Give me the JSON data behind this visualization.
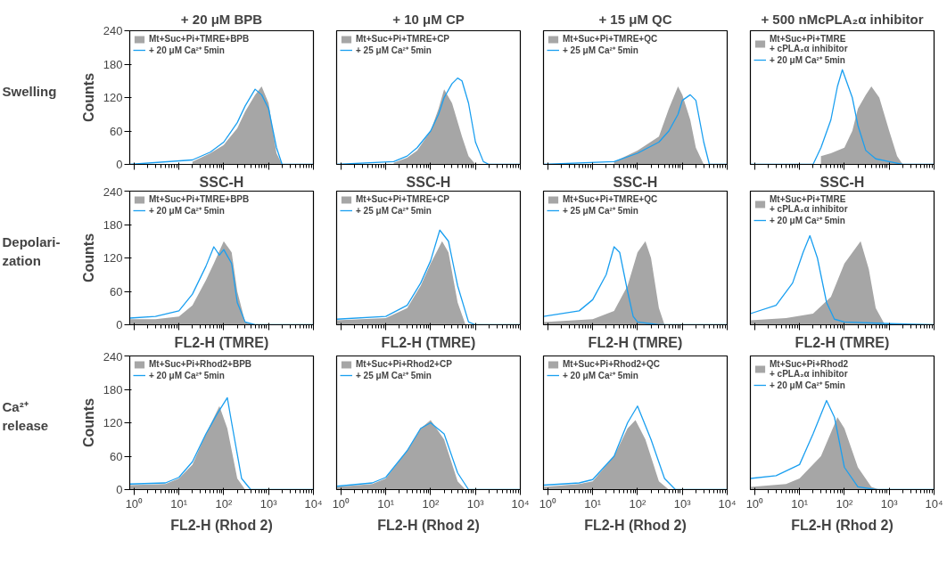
{
  "chart_data": [
    {
      "type": "area",
      "title": "+ 20 μM BPB",
      "xlabel": "SSC-H",
      "ylabel": "Counts",
      "annotations": [
        "Swelling"
      ],
      "log": "x",
      "xlim": [
        0.8,
        10000
      ],
      "ylim": [
        0,
        240
      ],
      "xticks": [
        {
          "value": 1,
          "label": null
        },
        {
          "value": 10,
          "label": null
        },
        {
          "value": 100,
          "label": null
        },
        {
          "value": 1000,
          "label": null
        },
        {
          "value": 10000,
          "label": null
        }
      ],
      "yticks": [
        0,
        60,
        120,
        180,
        240
      ],
      "tick_labels": "y",
      "legend": "top left",
      "marker": "none",
      "series": [
        {
          "name": "Mt+Suc+Pi+TMRE+BPB",
          "color": "#a6a6a6",
          "x": [
            20,
            50,
            100,
            200,
            300,
            500,
            700,
            1000,
            1500,
            2000
          ],
          "values": [
            5,
            20,
            35,
            65,
            95,
            125,
            140,
            110,
            20,
            0
          ]
        },
        {
          "name": "+ 20 μM Ca²⁺ 5min",
          "type": "line",
          "color": "#1a9ff0",
          "x": [
            0.8,
            20,
            50,
            100,
            200,
            300,
            500,
            700,
            1000,
            1500,
            2000,
            10000
          ],
          "values": [
            0,
            8,
            22,
            40,
            75,
            105,
            135,
            125,
            100,
            30,
            0,
            0
          ]
        }
      ]
    },
    {
      "type": "area",
      "title": "+ 10 μM CP",
      "xlabel": "SSC-H",
      "log": "x",
      "xlim": [
        0.8,
        10000
      ],
      "ylim": [
        0,
        240
      ],
      "xticks": [
        {
          "value": 1,
          "label": null
        },
        {
          "value": 10,
          "label": null
        },
        {
          "value": 100,
          "label": null
        },
        {
          "value": 1000,
          "label": null
        },
        {
          "value": 10000,
          "label": null
        }
      ],
      "yticks": [
        0,
        60,
        120,
        180,
        240
      ],
      "tick_labels": false,
      "legend": "top left",
      "marker": "none",
      "series": [
        {
          "name": "Mt+Suc+Pi+TMRE+CP",
          "color": "#a6a6a6",
          "x": [
            15,
            30,
            50,
            100,
            150,
            200,
            300,
            500,
            700,
            1000
          ],
          "values": [
            3,
            12,
            25,
            60,
            100,
            135,
            110,
            50,
            15,
            0
          ]
        },
        {
          "name": "+ 25 μM Ca²⁺ 5min",
          "type": "line",
          "color": "#1a9ff0",
          "x": [
            0.8,
            15,
            30,
            50,
            100,
            150,
            200,
            300,
            400,
            500,
            700,
            1000,
            1500,
            2000,
            10000
          ],
          "values": [
            0,
            5,
            15,
            30,
            60,
            90,
            120,
            145,
            155,
            150,
            110,
            40,
            5,
            0,
            0
          ]
        }
      ]
    },
    {
      "type": "area",
      "title": "+ 15 μM QC",
      "xlabel": "SSC-H",
      "log": "x",
      "xlim": [
        0.8,
        10000
      ],
      "ylim": [
        0,
        240
      ],
      "xticks": [
        {
          "value": 1,
          "label": null
        },
        {
          "value": 10,
          "label": null
        },
        {
          "value": 100,
          "label": null
        },
        {
          "value": 1000,
          "label": null
        },
        {
          "value": 10000,
          "label": null
        }
      ],
      "yticks": [
        0,
        60,
        120,
        180,
        240
      ],
      "tick_labels": false,
      "legend": "top left",
      "marker": "none",
      "series": [
        {
          "name": "Mt+Suc+Pi+TMRE+QC",
          "color": "#a6a6a6",
          "x": [
            30,
            100,
            300,
            500,
            800,
            1000,
            1500,
            2000,
            3000
          ],
          "values": [
            5,
            25,
            50,
            100,
            140,
            125,
            80,
            30,
            0
          ]
        },
        {
          "name": "+ 25 μM Ca²⁺ 5min",
          "type": "line",
          "color": "#1a9ff0",
          "x": [
            0.8,
            30,
            100,
            300,
            500,
            800,
            1000,
            1500,
            2000,
            3000,
            4000,
            10000
          ],
          "values": [
            0,
            5,
            20,
            40,
            60,
            90,
            115,
            125,
            115,
            40,
            0,
            0
          ]
        }
      ]
    },
    {
      "type": "area",
      "title": "+ 500 nMcPLA₂α inhibitor",
      "xlabel": "SSC-H",
      "log": "x",
      "xlim": [
        0.8,
        10000
      ],
      "ylim": [
        0,
        240
      ],
      "xticks": [
        {
          "value": 1,
          "label": null
        },
        {
          "value": 10,
          "label": null
        },
        {
          "value": 100,
          "label": null
        },
        {
          "value": 1000,
          "label": null
        },
        {
          "value": 10000,
          "label": null
        }
      ],
      "yticks": [
        0,
        60,
        120,
        180,
        240
      ],
      "tick_labels": false,
      "legend": "top left",
      "marker": "none",
      "series": [
        {
          "name": "Mt+Suc+Pi+TMRE\n+ cPLA₂α inhibitor",
          "color": "#a6a6a6",
          "x": [
            30,
            50,
            100,
            150,
            200,
            300,
            400,
            600,
            1000,
            1500,
            2000
          ],
          "values": [
            15,
            20,
            30,
            60,
            100,
            125,
            140,
            120,
            60,
            15,
            0
          ]
        },
        {
          "name": "+ 20 μM Ca²⁺ 5min",
          "type": "line",
          "color": "#1a9ff0",
          "x": [
            0.8,
            20,
            30,
            50,
            70,
            90,
            150,
            200,
            300,
            500,
            1000,
            2000,
            10000
          ],
          "values": [
            0,
            0,
            30,
            80,
            140,
            170,
            120,
            70,
            25,
            10,
            5,
            0,
            0
          ]
        }
      ]
    },
    {
      "type": "area",
      "xlabel": "FL2-H (TMRE)",
      "ylabel": "Counts",
      "annotations": [
        "Depolari-\nzation"
      ],
      "log": "x",
      "xlim": [
        0.8,
        10000
      ],
      "ylim": [
        0,
        240
      ],
      "xticks": [
        {
          "value": 1,
          "label": null
        },
        {
          "value": 10,
          "label": null
        },
        {
          "value": 100,
          "label": null
        },
        {
          "value": 1000,
          "label": null
        },
        {
          "value": 10000,
          "label": null
        }
      ],
      "yticks": [
        0,
        60,
        120,
        180,
        240
      ],
      "tick_labels": "y",
      "legend": "top left",
      "marker": "none",
      "series": [
        {
          "name": "Mt+Suc+Pi+TMRE+BPB",
          "color": "#a6a6a6",
          "x": [
            0.8,
            3,
            10,
            20,
            40,
            60,
            100,
            150,
            200,
            300,
            500
          ],
          "values": [
            10,
            10,
            15,
            35,
            80,
            110,
            150,
            130,
            60,
            5,
            0
          ]
        },
        {
          "name": "+ 20 μM Ca²⁺ 5min",
          "type": "line",
          "color": "#1a9ff0",
          "x": [
            0.8,
            3,
            10,
            20,
            40,
            60,
            80,
            100,
            150,
            200,
            300,
            500,
            10000
          ],
          "values": [
            12,
            15,
            25,
            55,
            105,
            140,
            125,
            135,
            110,
            40,
            5,
            0,
            0
          ]
        }
      ]
    },
    {
      "type": "area",
      "xlabel": "FL2-H (TMRE)",
      "log": "x",
      "xlim": [
        0.8,
        10000
      ],
      "ylim": [
        0,
        240
      ],
      "xticks": [
        {
          "value": 1,
          "label": null
        },
        {
          "value": 10,
          "label": null
        },
        {
          "value": 100,
          "label": null
        },
        {
          "value": 1000,
          "label": null
        },
        {
          "value": 10000,
          "label": null
        }
      ],
      "yticks": [
        0,
        60,
        120,
        180,
        240
      ],
      "tick_labels": false,
      "legend": "top left",
      "marker": "none",
      "series": [
        {
          "name": "Mt+Suc+Pi+TMRE+CP",
          "color": "#a6a6a6",
          "x": [
            0.8,
            10,
            30,
            60,
            100,
            180,
            250,
            400,
            600
          ],
          "values": [
            8,
            12,
            30,
            70,
            110,
            150,
            130,
            40,
            0
          ]
        },
        {
          "name": "+ 25 μM Ca²⁺ 5min",
          "type": "line",
          "color": "#1a9ff0",
          "x": [
            0.8,
            10,
            30,
            60,
            100,
            160,
            250,
            400,
            700,
            1000,
            10000
          ],
          "values": [
            10,
            15,
            35,
            75,
            115,
            170,
            150,
            70,
            5,
            0,
            0
          ]
        }
      ]
    },
    {
      "type": "area",
      "xlabel": "FL2-H (TMRE)",
      "log": "x",
      "xlim": [
        0.8,
        10000
      ],
      "ylim": [
        0,
        240
      ],
      "xticks": [
        {
          "value": 1,
          "label": null
        },
        {
          "value": 10,
          "label": null
        },
        {
          "value": 100,
          "label": null
        },
        {
          "value": 1000,
          "label": null
        },
        {
          "value": 10000,
          "label": null
        }
      ],
      "yticks": [
        0,
        60,
        120,
        180,
        240
      ],
      "tick_labels": false,
      "legend": "top left",
      "marker": "none",
      "series": [
        {
          "name": "Mt+Suc+Pi+TMRE+QC",
          "color": "#a6a6a6",
          "x": [
            0.8,
            10,
            30,
            60,
            100,
            150,
            200,
            300,
            400
          ],
          "values": [
            5,
            10,
            25,
            70,
            130,
            150,
            120,
            30,
            0
          ]
        },
        {
          "name": "+ 25 μM Ca²⁺ 5min",
          "type": "line",
          "color": "#1a9ff0",
          "x": [
            0.8,
            5,
            10,
            20,
            30,
            40,
            60,
            80,
            100,
            300,
            10000
          ],
          "values": [
            15,
            25,
            45,
            90,
            140,
            130,
            60,
            15,
            5,
            0,
            0
          ]
        }
      ]
    },
    {
      "type": "area",
      "xlabel": "FL2-H (TMRE)",
      "log": "x",
      "xlim": [
        0.8,
        10000
      ],
      "ylim": [
        0,
        240
      ],
      "xticks": [
        {
          "value": 1,
          "label": null
        },
        {
          "value": 10,
          "label": null
        },
        {
          "value": 100,
          "label": null
        },
        {
          "value": 1000,
          "label": null
        },
        {
          "value": 10000,
          "label": null
        }
      ],
      "yticks": [
        0,
        60,
        120,
        180,
        240
      ],
      "tick_labels": false,
      "legend": "top left",
      "marker": "none",
      "series": [
        {
          "name": "Mt+Suc+Pi+TMRE\n+ cPLA₂α inhibitor",
          "color": "#a6a6a6",
          "x": [
            0.8,
            5,
            20,
            50,
            100,
            230,
            350,
            500,
            800
          ],
          "values": [
            8,
            12,
            20,
            50,
            110,
            150,
            100,
            30,
            0
          ]
        },
        {
          "name": "+ 20 μM Ca²⁺ 5min",
          "type": "line",
          "color": "#1a9ff0",
          "x": [
            0.8,
            3,
            7,
            12,
            17,
            25,
            40,
            60,
            100,
            1000,
            10000
          ],
          "values": [
            20,
            35,
            75,
            130,
            160,
            120,
            40,
            10,
            5,
            2,
            0
          ]
        }
      ]
    },
    {
      "type": "area",
      "xlabel": "FL2-H (Rhod 2)",
      "ylabel": "Counts",
      "annotations": [
        "Ca²⁺\nrelease"
      ],
      "log": "x",
      "xlim": [
        0.8,
        10000
      ],
      "ylim": [
        0,
        240
      ],
      "xticks": [
        {
          "value": 1,
          "label": "10⁰"
        },
        {
          "value": 10,
          "label": "10¹"
        },
        {
          "value": 100,
          "label": "10²"
        },
        {
          "value": 1000,
          "label": "10³"
        },
        {
          "value": 10000,
          "label": "10⁴"
        }
      ],
      "yticks": [
        0,
        60,
        120,
        180,
        240
      ],
      "legend": "top left",
      "marker": "none",
      "series": [
        {
          "name": "Mt+Suc+Pi+Rhod2+BPB",
          "color": "#a6a6a6",
          "x": [
            0.8,
            5,
            10,
            20,
            40,
            80,
            120,
            200,
            300
          ],
          "values": [
            8,
            10,
            20,
            45,
            100,
            150,
            110,
            20,
            0
          ]
        },
        {
          "name": "+ 20 μM Ca²⁺ 5min",
          "type": "line",
          "color": "#1a9ff0",
          "x": [
            0.8,
            5,
            10,
            20,
            40,
            70,
            120,
            150,
            250,
            400,
            10000
          ],
          "values": [
            10,
            12,
            22,
            50,
            100,
            135,
            165,
            120,
            20,
            0,
            0
          ]
        }
      ]
    },
    {
      "type": "area",
      "xlabel": "FL2-H (Rhod 2)",
      "log": "x",
      "xlim": [
        0.8,
        10000
      ],
      "ylim": [
        0,
        240
      ],
      "xticks": [
        {
          "value": 1,
          "label": "10⁰"
        },
        {
          "value": 10,
          "label": "10¹"
        },
        {
          "value": 100,
          "label": "10²"
        },
        {
          "value": 1000,
          "label": "10³"
        },
        {
          "value": 10000,
          "label": "10⁴"
        }
      ],
      "yticks": [
        0,
        60,
        120,
        180,
        240
      ],
      "tick_labels": "x",
      "legend": "top left",
      "marker": "none",
      "series": [
        {
          "name": "Mt+Suc+Pi+Rhod2+CP",
          "color": "#a6a6a6",
          "x": [
            0.8,
            5,
            10,
            30,
            60,
            100,
            200,
            400,
            600
          ],
          "values": [
            5,
            10,
            20,
            70,
            110,
            125,
            90,
            15,
            0
          ]
        },
        {
          "name": "+ 25 μM Ca²⁺ 5min",
          "type": "line",
          "color": "#1a9ff0",
          "x": [
            0.8,
            5,
            10,
            30,
            60,
            100,
            200,
            400,
            700,
            10000
          ],
          "values": [
            6,
            12,
            22,
            70,
            110,
            120,
            100,
            30,
            0,
            0
          ]
        }
      ]
    },
    {
      "type": "area",
      "xlabel": "FL2-H (Rhod 2)",
      "log": "x",
      "xlim": [
        0.8,
        10000
      ],
      "ylim": [
        0,
        240
      ],
      "xticks": [
        {
          "value": 1,
          "label": "10⁰"
        },
        {
          "value": 10,
          "label": "10¹"
        },
        {
          "value": 100,
          "label": "10²"
        },
        {
          "value": 1000,
          "label": "10³"
        },
        {
          "value": 10000,
          "label": "10⁴"
        }
      ],
      "yticks": [
        0,
        60,
        120,
        180,
        240
      ],
      "tick_labels": "x",
      "legend": "top left",
      "marker": "none",
      "series": [
        {
          "name": "Mt+Suc+Pi+Rhod2+QC",
          "color": "#a6a6a6",
          "x": [
            0.8,
            5,
            10,
            30,
            60,
            90,
            150,
            300,
            500
          ],
          "values": [
            5,
            10,
            15,
            60,
            110,
            125,
            90,
            15,
            0
          ]
        },
        {
          "name": "+ 20 μM Ca²⁺ 5min",
          "type": "line",
          "color": "#1a9ff0",
          "x": [
            0.8,
            5,
            10,
            30,
            60,
            100,
            200,
            400,
            700,
            10000
          ],
          "values": [
            8,
            12,
            18,
            60,
            120,
            150,
            90,
            20,
            0,
            0
          ]
        }
      ]
    },
    {
      "type": "area",
      "xlabel": "FL2-H (Rhod 2)",
      "log": "x",
      "xlim": [
        0.8,
        10000
      ],
      "ylim": [
        0,
        240
      ],
      "xticks": [
        {
          "value": 1,
          "label": "10⁰"
        },
        {
          "value": 10,
          "label": "10¹"
        },
        {
          "value": 100,
          "label": "10²"
        },
        {
          "value": 1000,
          "label": "10³"
        },
        {
          "value": 10000,
          "label": "10⁴"
        }
      ],
      "yticks": [
        0,
        60,
        120,
        180,
        240
      ],
      "tick_labels": "x",
      "legend": "top left",
      "marker": "none",
      "series": [
        {
          "name": "Mt+Suc+Pi+Rhod2\n+ cPLA₂α inhibitor",
          "color": "#a6a6a6",
          "x": [
            0.8,
            5,
            10,
            30,
            70,
            100,
            200,
            400,
            600
          ],
          "values": [
            5,
            10,
            20,
            60,
            130,
            110,
            40,
            5,
            0
          ]
        },
        {
          "name": "+ 20 μM Ca²⁺ 5min",
          "type": "line",
          "color": "#1a9ff0",
          "x": [
            0.8,
            3,
            10,
            20,
            40,
            60,
            100,
            200,
            500,
            10000
          ],
          "values": [
            20,
            25,
            45,
            100,
            160,
            130,
            40,
            5,
            0,
            0
          ]
        }
      ]
    }
  ]
}
